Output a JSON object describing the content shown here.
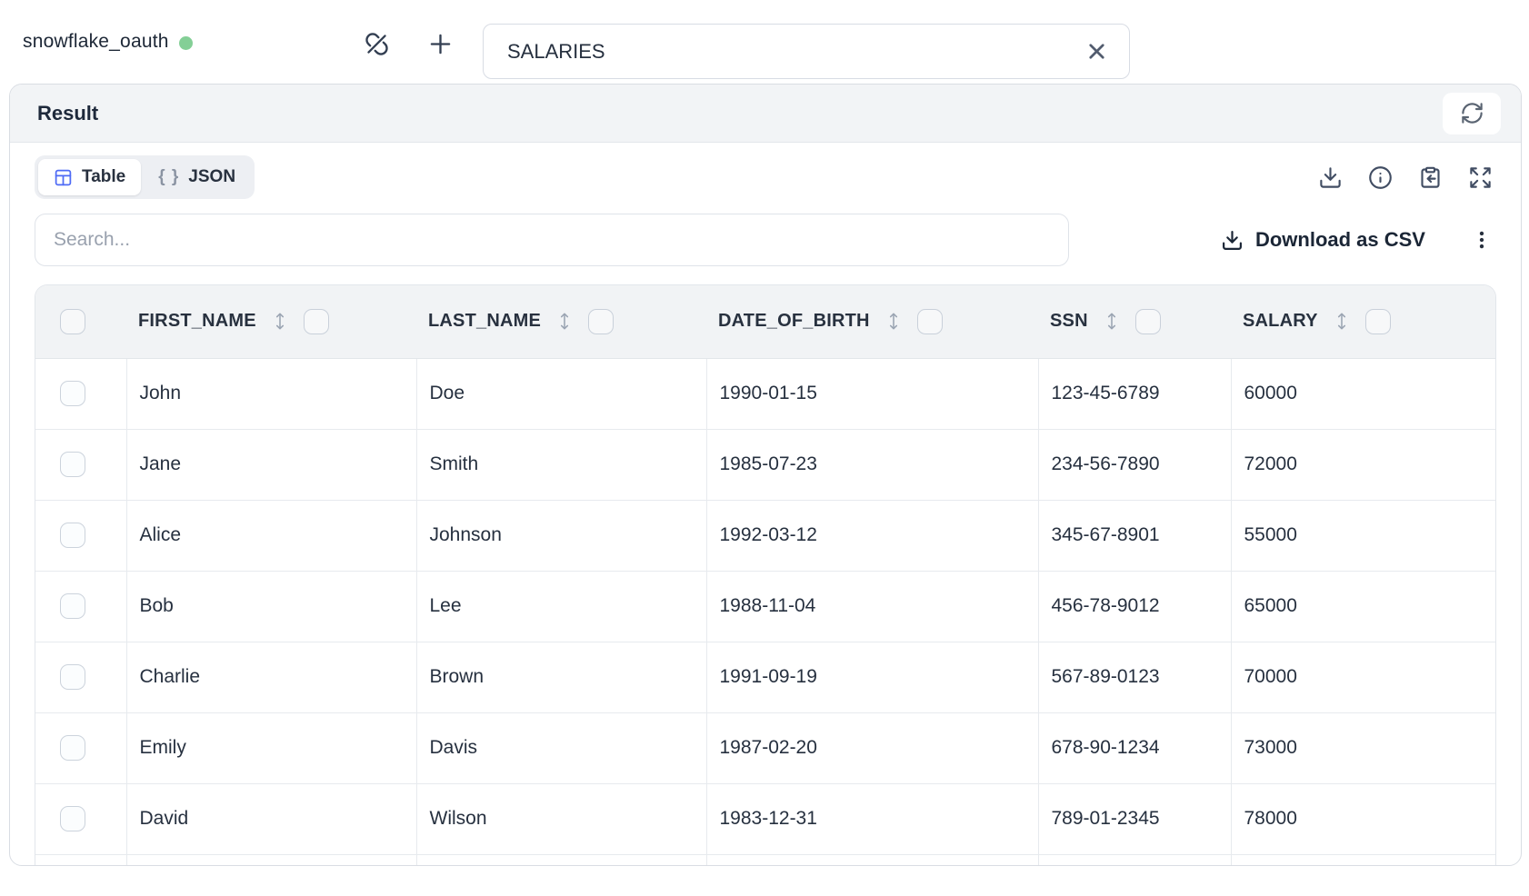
{
  "topbar": {
    "connection_name": "snowflake_oauth",
    "connection_status": "connected",
    "status_color": "#84cf96",
    "table_name_input": {
      "value": "SALARIES"
    }
  },
  "result_panel": {
    "title": "Result",
    "tabs": {
      "table_label": "Table",
      "json_label": "JSON",
      "json_braces": "{ }"
    },
    "search_placeholder": "Search...",
    "download_csv_label": "Download as CSV"
  },
  "table": {
    "columns": [
      "FIRST_NAME",
      "LAST_NAME",
      "DATE_OF_BIRTH",
      "SSN",
      "SALARY"
    ],
    "rows": [
      [
        "John",
        "Doe",
        "1990-01-15",
        "123-45-6789",
        "60000"
      ],
      [
        "Jane",
        "Smith",
        "1985-07-23",
        "234-56-7890",
        "72000"
      ],
      [
        "Alice",
        "Johnson",
        "1992-03-12",
        "345-67-8901",
        "55000"
      ],
      [
        "Bob",
        "Lee",
        "1988-11-04",
        "456-78-9012",
        "65000"
      ],
      [
        "Charlie",
        "Brown",
        "1991-09-19",
        "567-89-0123",
        "70000"
      ],
      [
        "Emily",
        "Davis",
        "1987-02-20",
        "678-90-1234",
        "73000"
      ],
      [
        "David",
        "Wilson",
        "1983-12-31",
        "789-01-2345",
        "78000"
      ]
    ]
  },
  "icons": {
    "disconnect": "link-off",
    "add": "plus",
    "clear": "x",
    "refresh": "refresh-cw",
    "table_view": "table-grid",
    "json_view_glyph": "{ }",
    "download": "download-tray",
    "info": "info-circle",
    "paste": "clipboard-arrow-in",
    "expand": "expand-diagonal-arrows",
    "more": "kebab-vertical",
    "sort": "up-down-arrow"
  },
  "colors": {
    "accent_blue": "#4f6bf5",
    "status_green": "#84cf96"
  }
}
